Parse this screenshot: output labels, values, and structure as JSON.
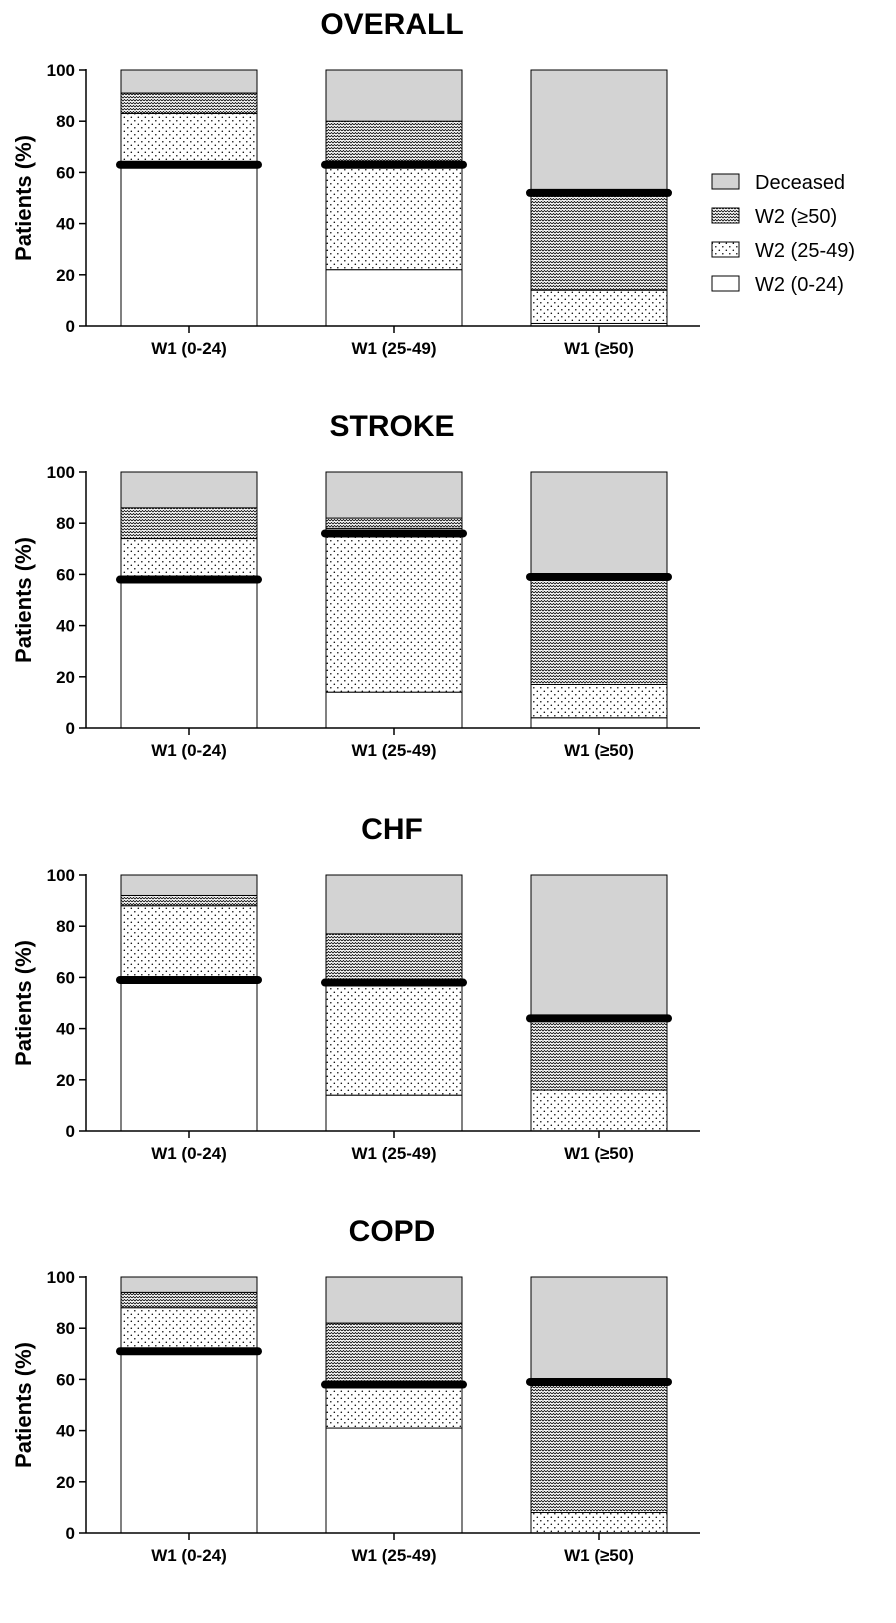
{
  "legend": {
    "entries": [
      {
        "key": "deceased",
        "label": "Deceased"
      },
      {
        "key": "w2_50",
        "label": "W2 (≥50)"
      },
      {
        "key": "w2_25_49",
        "label": "W2 (25-49)"
      },
      {
        "key": "w2_0_24",
        "label": "W2 (0-24)"
      }
    ]
  },
  "colors": {
    "deceased": "#d3d3d3",
    "w2_50": "#ffffff",
    "w2_25_49": "#ffffff",
    "w2_0_24": "#ffffff",
    "stroke": "#000000",
    "marker": "#000000"
  },
  "chart_data": [
    {
      "type": "bar",
      "stacked": true,
      "title": "OVERALL",
      "xlabel": "",
      "ylabel": "Patients (%)",
      "ylim": [
        0,
        100
      ],
      "yticks": [
        0,
        20,
        40,
        60,
        80,
        100
      ],
      "categories": [
        "W1 (0-24)",
        "W1 (25-49)",
        "W1 (≥50)"
      ],
      "series": [
        {
          "key": "w2_0_24",
          "name": "W2 (0-24)",
          "values": [
            63,
            22,
            1
          ]
        },
        {
          "key": "w2_25_49",
          "name": "W2 (25-49)",
          "values": [
            20,
            40,
            13
          ]
        },
        {
          "key": "w2_50",
          "name": "W2 (≥50)",
          "values": [
            8,
            18,
            38
          ]
        },
        {
          "key": "deceased",
          "name": "Deceased",
          "values": [
            9,
            20,
            48
          ]
        }
      ],
      "markers": [
        63,
        63,
        52
      ]
    },
    {
      "type": "bar",
      "stacked": true,
      "title": "STROKE",
      "xlabel": "",
      "ylabel": "Patients (%)",
      "ylim": [
        0,
        100
      ],
      "yticks": [
        0,
        20,
        40,
        60,
        80,
        100
      ],
      "categories": [
        "W1 (0-24)",
        "W1 (25-49)",
        "W1 (≥50)"
      ],
      "series": [
        {
          "key": "w2_0_24",
          "name": "W2 (0-24)",
          "values": [
            57,
            14,
            4
          ]
        },
        {
          "key": "w2_25_49",
          "name": "W2 (25-49)",
          "values": [
            17,
            64,
            13
          ]
        },
        {
          "key": "w2_50",
          "name": "W2 (≥50)",
          "values": [
            12,
            4,
            42
          ]
        },
        {
          "key": "deceased",
          "name": "Deceased",
          "values": [
            14,
            18,
            41
          ]
        }
      ],
      "markers": [
        58,
        76,
        59
      ]
    },
    {
      "type": "bar",
      "stacked": true,
      "title": "CHF",
      "xlabel": "",
      "ylabel": "Patients (%)",
      "ylim": [
        0,
        100
      ],
      "yticks": [
        0,
        20,
        40,
        60,
        80,
        100
      ],
      "categories": [
        "W1 (0-24)",
        "W1 (25-49)",
        "W1 (≥50)"
      ],
      "series": [
        {
          "key": "w2_0_24",
          "name": "W2 (0-24)",
          "values": [
            59,
            14,
            0
          ]
        },
        {
          "key": "w2_25_49",
          "name": "W2 (25-49)",
          "values": [
            29,
            44,
            16
          ]
        },
        {
          "key": "w2_50",
          "name": "W2 (≥50)",
          "values": [
            4,
            19,
            28
          ]
        },
        {
          "key": "deceased",
          "name": "Deceased",
          "values": [
            8,
            23,
            56
          ]
        }
      ],
      "markers": [
        59,
        58,
        44
      ]
    },
    {
      "type": "bar",
      "stacked": true,
      "title": "COPD",
      "xlabel": "",
      "ylabel": "Patients (%)",
      "ylim": [
        0,
        100
      ],
      "yticks": [
        0,
        20,
        40,
        60,
        80,
        100
      ],
      "categories": [
        "W1 (0-24)",
        "W1 (25-49)",
        "W1 (≥50)"
      ],
      "series": [
        {
          "key": "w2_0_24",
          "name": "W2 (0-24)",
          "values": [
            71,
            41,
            0
          ]
        },
        {
          "key": "w2_25_49",
          "name": "W2 (25-49)",
          "values": [
            17,
            17,
            8
          ]
        },
        {
          "key": "w2_50",
          "name": "W2 (≥50)",
          "values": [
            6,
            24,
            50
          ]
        },
        {
          "key": "deceased",
          "name": "Deceased",
          "values": [
            6,
            18,
            42
          ]
        }
      ],
      "markers": [
        71,
        58,
        59
      ]
    }
  ]
}
